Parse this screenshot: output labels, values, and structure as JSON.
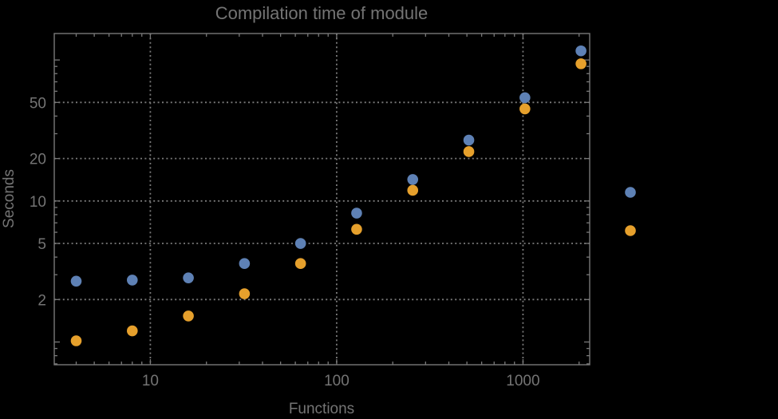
{
  "chart_data": {
    "type": "scatter",
    "title": "Compilation time of module",
    "xlabel": "Functions",
    "ylabel": "Seconds",
    "x_scale": "log",
    "y_scale": "log",
    "xlim": [
      3.05,
      2280
    ],
    "ylim": [
      0.69,
      154
    ],
    "grid": "dotted",
    "x": [
      4,
      8,
      16,
      32,
      64,
      128,
      256,
      512,
      1024,
      2048
    ],
    "series": [
      {
        "name": "blue",
        "color": "#5E81B5",
        "values": [
          2.7,
          2.75,
          2.85,
          3.6,
          5.0,
          8.2,
          14.2,
          27,
          54,
          116
        ]
      },
      {
        "name": "orange",
        "color": "#E6A02C",
        "values": [
          1.02,
          1.2,
          1.53,
          2.2,
          3.6,
          6.3,
          11.9,
          22.4,
          45,
          94
        ]
      }
    ],
    "x_ticks": {
      "major": [
        {
          "value": 10,
          "label": "10"
        },
        {
          "value": 100,
          "label": "100"
        },
        {
          "value": 1000,
          "label": "1000"
        }
      ],
      "minor": [
        4,
        5,
        6,
        7,
        8,
        9,
        20,
        30,
        40,
        50,
        60,
        70,
        80,
        90,
        200,
        300,
        400,
        500,
        600,
        700,
        800,
        900,
        2000
      ]
    },
    "y_ticks": {
      "major": [
        {
          "value": 2,
          "label": "2"
        },
        {
          "value": 5,
          "label": "5"
        },
        {
          "value": 10,
          "label": "10"
        },
        {
          "value": 20,
          "label": "20"
        },
        {
          "value": 50,
          "label": "50"
        }
      ],
      "unlabeled_major": [
        1,
        100
      ],
      "minor": [
        0.7,
        0.8,
        0.9,
        3,
        4,
        6,
        7,
        8,
        9,
        30,
        40,
        60,
        70,
        80,
        90
      ]
    },
    "gridlines": {
      "x": [
        10,
        100,
        1000
      ],
      "y": [
        2,
        5,
        10,
        20,
        50
      ]
    },
    "legend": {
      "position": "right",
      "markers": [
        {
          "series": "blue",
          "color": "#5E81B5",
          "label": ""
        },
        {
          "series": "orange",
          "color": "#E6A02C",
          "label": ""
        }
      ]
    },
    "colors": {
      "background": "#000000",
      "text": "#747474",
      "frame": "#787878",
      "grid": "#7A7A7A"
    }
  }
}
